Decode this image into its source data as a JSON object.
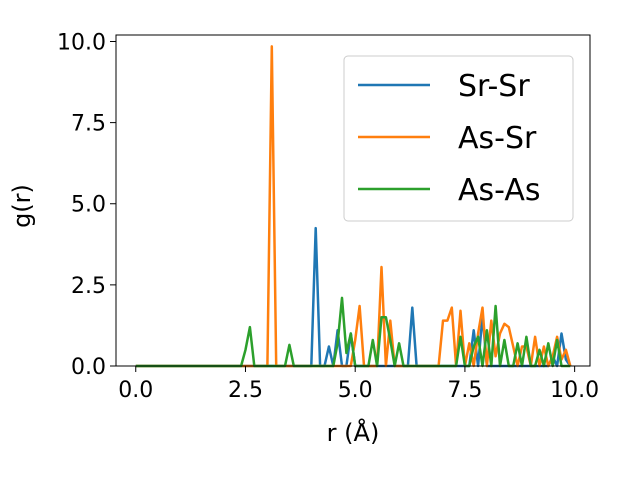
{
  "chart_data": {
    "type": "line",
    "xlabel": "r (Å)",
    "ylabel": "g(r)",
    "xlim": [
      -0.45,
      10.35
    ],
    "ylim": [
      0.0,
      10.2
    ],
    "xticks": [
      0.0,
      2.5,
      5.0,
      7.5,
      10.0
    ],
    "xtick_labels": [
      "0.0",
      "2.5",
      "5.0",
      "7.5",
      "10.0"
    ],
    "yticks": [
      0.0,
      2.5,
      5.0,
      7.5,
      10.0
    ],
    "ytick_labels": [
      "0.0",
      "2.5",
      "5.0",
      "7.5",
      "10.0"
    ],
    "grid": false,
    "legend_position": "top-right",
    "series": [
      {
        "name": "Sr-Sr",
        "color": "#1f77b4",
        "x": [
          0.0,
          3.9,
          4.0,
          4.1,
          4.2,
          4.3,
          4.4,
          4.5,
          4.6,
          4.7,
          4.8,
          4.9,
          5.0,
          5.1,
          6.1,
          6.2,
          6.3,
          6.4,
          7.6,
          7.7,
          7.8,
          7.9,
          8.0,
          8.1,
          9.4,
          9.5,
          9.6,
          9.7,
          9.8,
          9.9
        ],
        "y": [
          0.0,
          0.0,
          0.0,
          4.25,
          0.0,
          0.0,
          0.6,
          0.0,
          1.1,
          0.0,
          0.0,
          1.0,
          0.0,
          0.0,
          0.0,
          0.0,
          1.8,
          0.0,
          0.0,
          1.1,
          0.0,
          1.55,
          0.0,
          0.0,
          0.0,
          0.3,
          0.0,
          1.0,
          0.2,
          0.0
        ]
      },
      {
        "name": "As-Sr",
        "color": "#ff7f0e",
        "x": [
          0.0,
          2.9,
          3.0,
          3.1,
          3.2,
          3.3,
          4.8,
          4.9,
          5.0,
          5.1,
          5.2,
          5.3,
          5.4,
          5.5,
          5.6,
          5.7,
          5.8,
          5.9,
          6.0,
          6.9,
          7.0,
          7.1,
          7.2,
          7.3,
          7.4,
          7.5,
          7.6,
          7.7,
          7.8,
          7.9,
          8.0,
          8.1,
          8.2,
          8.3,
          8.4,
          8.5,
          8.6,
          8.7,
          8.8,
          8.9,
          9.0,
          9.1,
          9.2,
          9.3,
          9.4,
          9.5,
          9.6,
          9.7,
          9.8,
          9.9
        ],
        "y": [
          0.0,
          0.0,
          0.0,
          9.85,
          0.0,
          0.0,
          0.0,
          0.0,
          0.8,
          1.85,
          0.0,
          0.0,
          0.0,
          0.0,
          3.05,
          0.0,
          1.4,
          0.0,
          0.0,
          0.0,
          1.4,
          1.4,
          1.8,
          0.0,
          1.7,
          0.0,
          0.7,
          0.0,
          1.0,
          1.8,
          0.0,
          1.4,
          0.3,
          1.0,
          1.3,
          1.2,
          0.6,
          0.0,
          0.6,
          0.6,
          0.0,
          0.9,
          0.0,
          0.6,
          0.0,
          0.3,
          0.9,
          0.2,
          0.5,
          0.0
        ]
      },
      {
        "name": "As-As",
        "color": "#2ca02c",
        "x": [
          0.0,
          2.4,
          2.5,
          2.6,
          2.7,
          3.4,
          3.5,
          3.6,
          3.7,
          4.4,
          4.5,
          4.6,
          4.7,
          4.8,
          4.9,
          5.0,
          5.1,
          5.2,
          5.3,
          5.4,
          5.5,
          5.6,
          5.7,
          5.8,
          5.9,
          6.0,
          6.1,
          7.2,
          7.3,
          7.4,
          7.5,
          7.6,
          7.7,
          7.8,
          7.9,
          8.0,
          8.1,
          8.2,
          8.3,
          8.4,
          8.5,
          8.6,
          8.7,
          8.8,
          8.9,
          9.0,
          9.1,
          9.2,
          9.3,
          9.4,
          9.5,
          9.6,
          9.7,
          9.8,
          9.9
        ],
        "y": [
          0.0,
          0.0,
          0.5,
          1.2,
          0.0,
          0.0,
          0.65,
          0.0,
          0.0,
          0.0,
          0.0,
          0.7,
          2.1,
          0.4,
          1.0,
          0.0,
          0.0,
          0.0,
          0.0,
          0.8,
          0.0,
          1.5,
          1.5,
          0.8,
          0.0,
          0.7,
          0.0,
          0.0,
          0.0,
          0.9,
          0.0,
          0.0,
          0.6,
          0.9,
          0.0,
          1.1,
          0.0,
          1.85,
          0.0,
          0.8,
          0.0,
          0.0,
          0.7,
          0.0,
          0.9,
          0.0,
          0.0,
          0.5,
          0.0,
          0.7,
          0.0,
          0.8,
          0.0,
          0.0,
          0.0
        ]
      }
    ]
  }
}
